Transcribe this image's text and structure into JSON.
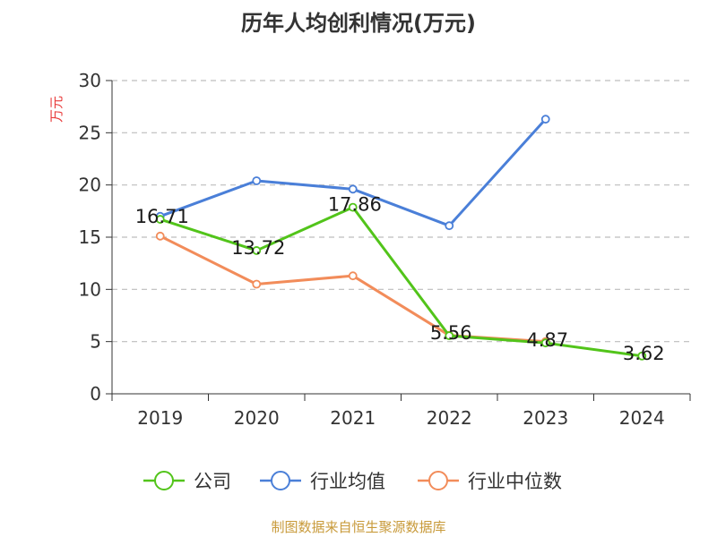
{
  "colors": {
    "company": "#52c41a",
    "industry_avg": "#4a7fd8",
    "industry_median": "#f28c5a",
    "source": "#c89a3a",
    "ylabel": "#e83a3a"
  },
  "chart_data": {
    "type": "line",
    "title": "历年人均创利情况(万元)",
    "ylabel": "万元",
    "xlabel": "",
    "categories": [
      "2019",
      "2020",
      "2021",
      "2022",
      "2023",
      "2024"
    ],
    "ylim": [
      0,
      30
    ],
    "yticks": [
      0,
      5,
      10,
      15,
      20,
      25,
      30
    ],
    "grid": true,
    "legend_position": "bottom",
    "series": [
      {
        "name": "公司",
        "key": "company",
        "values": [
          16.71,
          13.72,
          17.86,
          5.56,
          4.87,
          3.62
        ],
        "labels": [
          "16.71",
          "13.72",
          "17.86",
          "5.56",
          "4.87",
          "3.62"
        ]
      },
      {
        "name": "行业均值",
        "key": "industry_avg",
        "values": [
          17.0,
          20.4,
          19.6,
          16.1,
          26.3,
          null
        ]
      },
      {
        "name": "行业中位数",
        "key": "industry_median",
        "values": [
          15.1,
          10.5,
          11.3,
          5.6,
          5.0,
          null
        ]
      }
    ],
    "source": "制图数据来自恒生聚源数据库"
  }
}
